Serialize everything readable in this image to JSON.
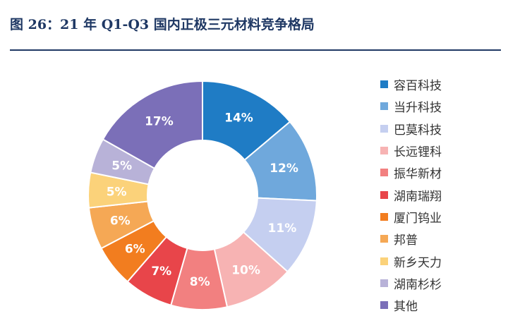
{
  "header": {
    "title": "图 26：21 年 Q1-Q3 国内正极三元材料竞争格局"
  },
  "chart_data": {
    "type": "pie",
    "title": "图 26：21 年 Q1-Q3 国内正极三元材料竞争格局",
    "categories": [
      "容百科技",
      "当升科技",
      "巴莫科技",
      "长远锂科",
      "振华新材",
      "湖南瑞翔",
      "厦门钨业",
      "邦普",
      "新乡天力",
      "湖南杉杉",
      "其他"
    ],
    "values": [
      14,
      12,
      11,
      10,
      8,
      7,
      6,
      6,
      5,
      5,
      17
    ],
    "labels": [
      "14%",
      "12%",
      "11%",
      "10%",
      "8%",
      "7%",
      "6%",
      "6%",
      "5%",
      "5%",
      "17%"
    ],
    "colors": [
      "#1f7cc5",
      "#6fa8dc",
      "#c5cff0",
      "#f7b3b3",
      "#f28080",
      "#e8454a",
      "#f27d1f",
      "#f5a855",
      "#fbd27a",
      "#b8b2d8",
      "#7b6fb8"
    ],
    "donut": true,
    "legend_position": "right"
  }
}
